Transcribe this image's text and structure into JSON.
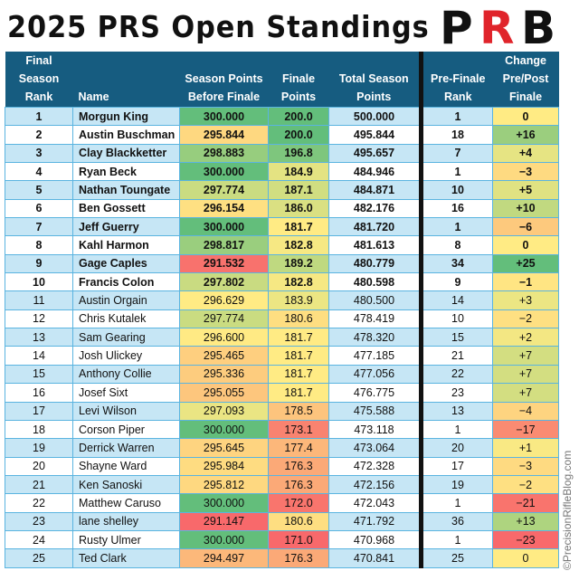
{
  "title": "2025 PRS Open Standings",
  "logo_text": "PRB",
  "watermark": "©PrecisionRifleBlog.com",
  "colors": {
    "header_bg": "#165c80",
    "row_alt": "#c6e6f5",
    "scale_low": "#f8696b",
    "scale_mid": "#ffeb84",
    "scale_high": "#63be7b"
  },
  "chart_data": {
    "type": "table",
    "title": "2025 PRS Open Standings",
    "columns": [
      "Final Season Rank",
      "Name",
      "Season Points Before Finale",
      "Finale Points",
      "Total Season Points",
      "Pre-Finale Rank",
      "Change Pre/Post Finale"
    ],
    "header_lines": [
      [
        "Final",
        "Season",
        "Rank"
      ],
      [
        "",
        "",
        "Name"
      ],
      [
        "",
        "Season Points",
        "Before Finale"
      ],
      [
        "",
        "Finale",
        "Points"
      ],
      [
        "",
        "Total Season",
        "Points"
      ],
      [
        "",
        "Pre-Finale",
        "Rank"
      ],
      [
        "Change",
        "Pre/Post",
        "Finale"
      ]
    ],
    "rows": [
      [
        "1",
        "Morgun King",
        "300.000",
        "200.0",
        "500.000",
        "1",
        "0"
      ],
      [
        "2",
        "Austin Buschman",
        "295.844",
        "200.0",
        "495.844",
        "18",
        "+16"
      ],
      [
        "3",
        "Clay Blackketter",
        "298.883",
        "196.8",
        "495.657",
        "7",
        "+4"
      ],
      [
        "4",
        "Ryan Beck",
        "300.000",
        "184.9",
        "484.946",
        "1",
        "−3"
      ],
      [
        "5",
        "Nathan Toungate",
        "297.774",
        "187.1",
        "484.871",
        "10",
        "+5"
      ],
      [
        "6",
        "Ben Gossett",
        "296.154",
        "186.0",
        "482.176",
        "16",
        "+10"
      ],
      [
        "7",
        "Jeff Guerry",
        "300.000",
        "181.7",
        "481.720",
        "1",
        "−6"
      ],
      [
        "8",
        "Kahl Harmon",
        "298.817",
        "182.8",
        "481.613",
        "8",
        "0"
      ],
      [
        "9",
        "Gage Caples",
        "291.532",
        "189.2",
        "480.779",
        "34",
        "+25"
      ],
      [
        "10",
        "Francis Colon",
        "297.802",
        "182.8",
        "480.598",
        "9",
        "−1"
      ],
      [
        "11",
        "Austin Orgain",
        "296.629",
        "183.9",
        "480.500",
        "14",
        "+3"
      ],
      [
        "12",
        "Chris Kutalek",
        "297.774",
        "180.6",
        "478.419",
        "10",
        "−2"
      ],
      [
        "13",
        "Sam Gearing",
        "296.600",
        "181.7",
        "478.320",
        "15",
        "+2"
      ],
      [
        "14",
        "Josh Ulickey",
        "295.465",
        "181.7",
        "477.185",
        "21",
        "+7"
      ],
      [
        "15",
        "Anthony Collie",
        "295.336",
        "181.7",
        "477.056",
        "22",
        "+7"
      ],
      [
        "16",
        "Josef Sixt",
        "295.055",
        "181.7",
        "476.775",
        "23",
        "+7"
      ],
      [
        "17",
        "Levi Wilson",
        "297.093",
        "178.5",
        "475.588",
        "13",
        "−4"
      ],
      [
        "18",
        "Corson Piper",
        "300.000",
        "173.1",
        "473.118",
        "1",
        "−17"
      ],
      [
        "19",
        "Derrick Warren",
        "295.645",
        "177.4",
        "473.064",
        "20",
        "+1"
      ],
      [
        "20",
        "Shayne Ward",
        "295.984",
        "176.3",
        "472.328",
        "17",
        "−3"
      ],
      [
        "21",
        "Ken Sanoski",
        "295.812",
        "176.3",
        "472.156",
        "19",
        "−2"
      ],
      [
        "22",
        "Matthew Caruso",
        "300.000",
        "172.0",
        "472.043",
        "1",
        "−21"
      ],
      [
        "23",
        "lane shelley",
        "291.147",
        "180.6",
        "471.792",
        "36",
        "+13"
      ],
      [
        "24",
        "Rusty Ulmer",
        "300.000",
        "171.0",
        "470.968",
        "1",
        "−23"
      ],
      [
        "25",
        "Ted Clark",
        "294.497",
        "176.3",
        "470.841",
        "25",
        "0"
      ]
    ],
    "bold_rows": 10,
    "heatmap_columns": [
      2,
      3,
      6
    ]
  }
}
